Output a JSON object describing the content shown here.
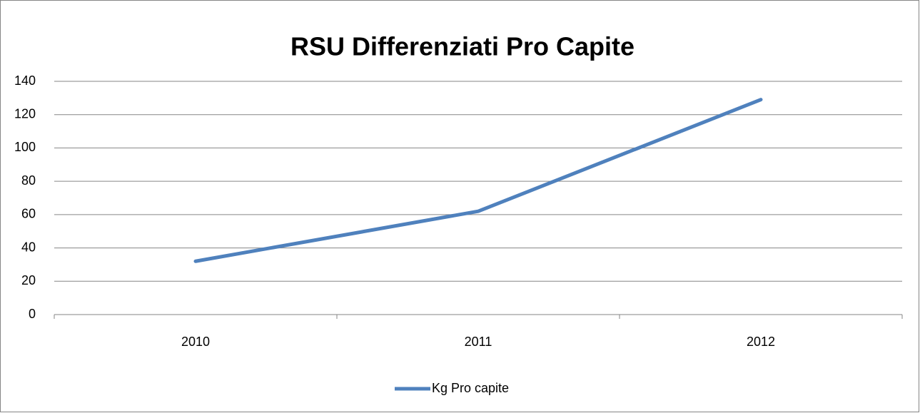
{
  "chart_data": {
    "type": "line",
    "title": "RSU Differenziati Pro Capite",
    "categories": [
      "2010",
      "2011",
      "2012"
    ],
    "series": [
      {
        "name": "Kg Pro capite",
        "color": "#4f81bd",
        "values": [
          32,
          62,
          129
        ]
      }
    ],
    "ylim": [
      0,
      140
    ],
    "yticks": [
      0,
      20,
      40,
      60,
      80,
      100,
      120,
      140
    ],
    "grid": true,
    "legend": "bottom"
  }
}
